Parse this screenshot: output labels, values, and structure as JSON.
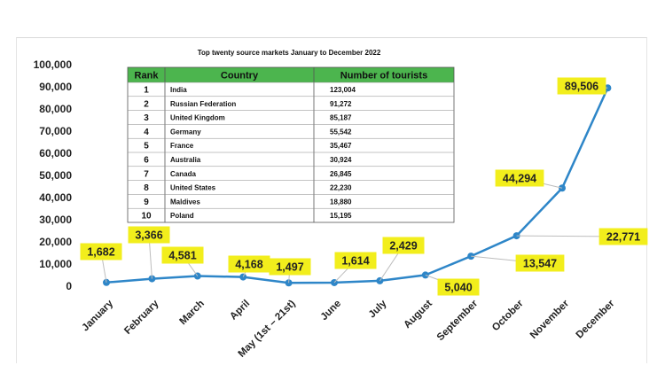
{
  "chart_data": {
    "type": "line",
    "title": "",
    "xlabel": "",
    "ylabel": "",
    "categories": [
      "January",
      "February",
      "March",
      "April",
      "May (1st – 21st)",
      "June",
      "July",
      "August",
      "September",
      "October",
      "November",
      "December"
    ],
    "series": [
      {
        "values": [
          1682,
          3366,
          4581,
          4168,
          1497,
          1614,
          2429,
          5040,
          13547,
          22771,
          44294,
          89506
        ]
      }
    ],
    "data_labels": [
      "1,682",
      "3,366",
      "4,581",
      "4,168",
      "1,497",
      "1,614",
      "2,429",
      "5,040",
      "13,547",
      "22,771",
      "44,294",
      "89,506"
    ],
    "ylim": [
      0,
      100000
    ],
    "yticks": [
      "0",
      "10,000",
      "20,000",
      "30,000",
      "40,000",
      "50,000",
      "60,000",
      "70,000",
      "80,000",
      "90,000",
      "100,000"
    ],
    "grid": false,
    "legend": "none",
    "line_color": "#2e86c8",
    "label_fill": "#f2ee1c",
    "inset_table": {
      "title": "Top twenty source markets January to December 2022",
      "header_fill": "#4cb54e",
      "headers": [
        "Rank",
        "Country",
        "Number of tourists"
      ],
      "rows": [
        [
          "1",
          "India",
          "123,004"
        ],
        [
          "2",
          "Russian Federation",
          "91,272"
        ],
        [
          "3",
          "United Kingdom",
          "85,187"
        ],
        [
          "4",
          "Germany",
          "55,542"
        ],
        [
          "5",
          "France",
          "35,467"
        ],
        [
          "6",
          "Australia",
          "30,924"
        ],
        [
          "7",
          "Canada",
          "26,845"
        ],
        [
          "8",
          "United States",
          "22,230"
        ],
        [
          "9",
          "Maldives",
          "18,880"
        ],
        [
          "10",
          "Poland",
          "15,195"
        ]
      ]
    }
  }
}
